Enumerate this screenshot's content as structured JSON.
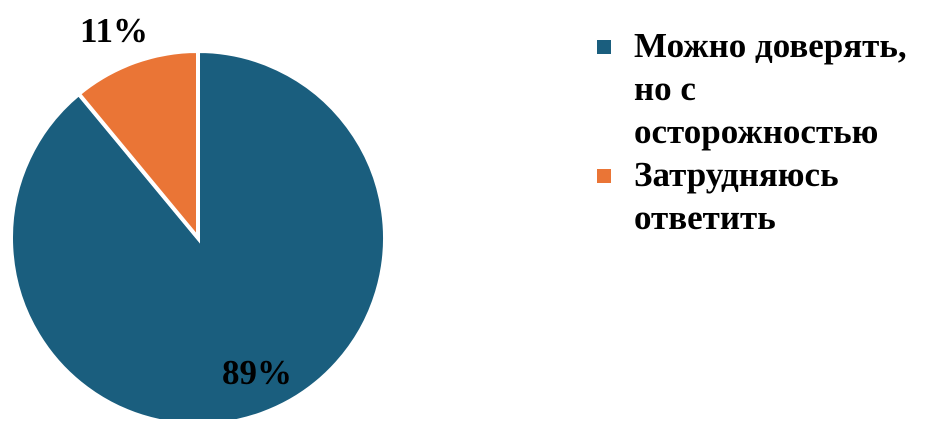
{
  "chart_data": {
    "type": "pie",
    "categories": [
      "Можно доверять, но с осторожностью",
      "Затрудняюсь ответить"
    ],
    "values": [
      89,
      11
    ],
    "data_labels": [
      "89%",
      "11%"
    ],
    "colors": [
      "#1a5e7e",
      "#ea7536"
    ],
    "legend_position": "right",
    "start_angle": "12 o'clock",
    "direction": "clockwise"
  }
}
